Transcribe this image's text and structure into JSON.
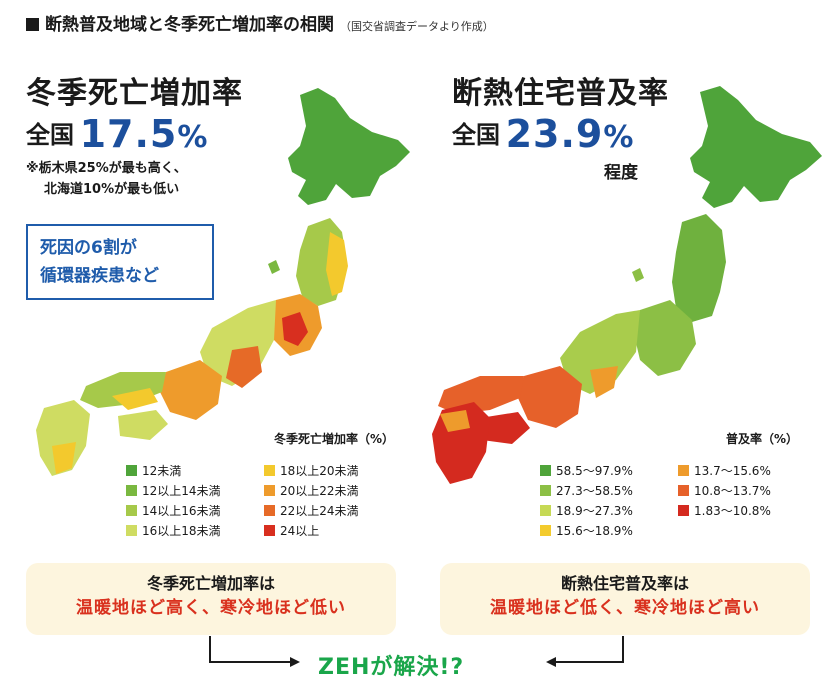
{
  "header": {
    "title": "断熱普及地域と冬季死亡増加率の相関",
    "source": "（国交省調査データより作成）"
  },
  "left_panel": {
    "title": "冬季死亡増加率",
    "national_label": "全国",
    "national_value": "17.5",
    "national_unit": "%",
    "note_line1": "※栃木県25%が最も高く、",
    "note_line2": "北海道10%が最も低い",
    "cause_line1": "死因の6割が",
    "cause_line2": "循環器疾患など",
    "legend_title": "冬季死亡増加率（%）",
    "legend": [
      {
        "label": "12未満",
        "color": "#4fa43a"
      },
      {
        "label": "12以上14未満",
        "color": "#7ab840"
      },
      {
        "label": "14以上16未満",
        "color": "#a6c94a"
      },
      {
        "label": "16以上18未満",
        "color": "#cfdc62"
      },
      {
        "label": "18以上20未満",
        "color": "#f3c92d"
      },
      {
        "label": "20以上22未満",
        "color": "#ee9b2c"
      },
      {
        "label": "22以上24未満",
        "color": "#e66a27"
      },
      {
        "label": "24以上",
        "color": "#d82f1f"
      }
    ],
    "callout_line1": "冬季死亡増加率は",
    "callout_line2": "温暖地ほど高く、寒冷地ほど低い"
  },
  "right_panel": {
    "title": "断熱住宅普及率",
    "national_label": "全国",
    "national_value": "23.9",
    "national_unit": "%",
    "national_suffix": "程度",
    "legend_title": "普及率（%）",
    "legend": [
      {
        "label": "58.5～97.9%",
        "color": "#4fa43a"
      },
      {
        "label": "27.3～58.5%",
        "color": "#8cbf45"
      },
      {
        "label": "18.9～27.3%",
        "color": "#c6d955"
      },
      {
        "label": "15.6～18.9%",
        "color": "#f3cb2d"
      },
      {
        "label": "13.7～15.6%",
        "color": "#ee9b2c"
      },
      {
        "label": "10.8～13.7%",
        "color": "#e6612a"
      },
      {
        "label": "1.83～10.8%",
        "color": "#d42a1f"
      }
    ],
    "callout_line1": "断熱住宅普及率は",
    "callout_line2": "温暖地ほど低く、寒冷地ほど高い"
  },
  "conclusion": "ZEHが解決!?",
  "colors": {
    "accent_blue": "#1c4f9c",
    "callout_bg": "#fdf5de",
    "red_text": "#d9311e",
    "green_text": "#1aa64a"
  }
}
